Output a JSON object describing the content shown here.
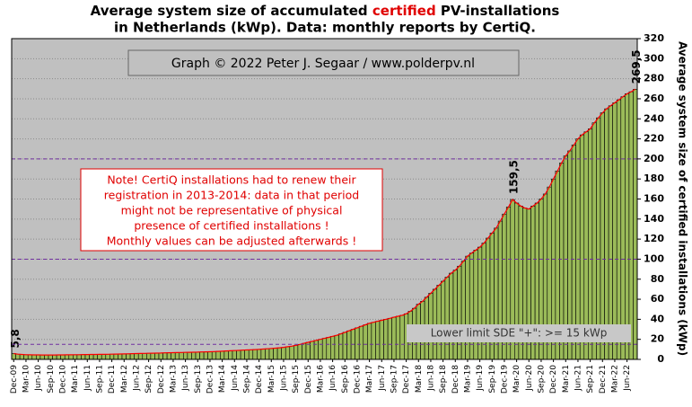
{
  "chart_data": {
    "type": "bar",
    "title": {
      "line1": [
        "Average system size of accumulated ",
        "certified",
        " PV-installations"
      ],
      "line2": "in Netherlands (kWp). Data: monthly reports by CertiQ."
    },
    "copyright": "Graph © 2022 Peter J. Segaar / www.polderpv.nl",
    "note": [
      "Note! CertiQ installations had to renew their",
      "registration in 2013-2014:  data in that period",
      "might  not be representative of physical",
      "presence of certified installations  !",
      "Monthly values can be adjusted afterwards !"
    ],
    "lower_limit_text": "Lower limit  SDE \"+\":    >=  15 kWp",
    "y_axis_label": "Average system size of certified installations  (kWp)",
    "ylim": [
      0,
      320
    ],
    "yticks": [
      0,
      20,
      40,
      60,
      80,
      100,
      120,
      140,
      160,
      180,
      200,
      220,
      240,
      260,
      280,
      300,
      320
    ],
    "grid": true,
    "ref_lines": [
      15,
      100,
      200
    ],
    "color": "#9bbb59",
    "line_color": "#ff0000",
    "categories": [
      "Dec-09",
      null,
      null,
      "Mar-10",
      null,
      null,
      "Jun-10",
      null,
      null,
      "Sep-10",
      null,
      null,
      "Dec-10",
      null,
      null,
      "Mar-11",
      null,
      null,
      "Jun-11",
      null,
      null,
      "Sep-11",
      null,
      null,
      "Dec-11",
      null,
      null,
      "Mar-12",
      null,
      null,
      "Jun-12",
      null,
      null,
      "Sep-12",
      null,
      null,
      "Dec-12",
      null,
      null,
      "Mar-13",
      null,
      null,
      "Jun-13",
      null,
      null,
      "Sep-13",
      null,
      null,
      "Dec-13",
      null,
      null,
      "Mar-14",
      null,
      null,
      "Jun-14",
      null,
      null,
      "Sep-14",
      null,
      null,
      "Dec-14",
      null,
      null,
      "Mar-15",
      null,
      null,
      "Jun-15",
      null,
      null,
      "Sep-15",
      null,
      null,
      "Dec-15",
      null,
      null,
      "Mar-16",
      null,
      null,
      "Jun-16",
      null,
      null,
      "Sep-16",
      null,
      null,
      "Dec-16",
      null,
      null,
      "Mar-17",
      null,
      null,
      "Jun-17",
      null,
      null,
      "Sep-17",
      null,
      null,
      "Dec-17",
      null,
      null,
      "Mar-18",
      null,
      null,
      "Jun-18",
      null,
      null,
      "Sep-18",
      null,
      null,
      "Dec-18",
      null,
      null,
      "Mar-19",
      null,
      null,
      "Jun-19",
      null,
      null,
      "Sep-19",
      null,
      null,
      "Dec-19",
      null,
      null,
      "Mar-20",
      null,
      null,
      "Jun-20",
      null,
      null,
      "Sep-20",
      null,
      null,
      "Dec-20",
      null,
      null,
      "Mar-21",
      null,
      null,
      "Jun-21",
      null,
      null,
      "Sep-21",
      null,
      null,
      "Dec-21",
      null,
      null,
      "Mar-22",
      null,
      null,
      "Jun-22",
      null,
      null
    ],
    "values": [
      5.8,
      5.2,
      4.9,
      4.7,
      4.6,
      4.5,
      4.5,
      4.4,
      4.4,
      4.4,
      4.4,
      4.5,
      4.5,
      4.6,
      4.6,
      4.7,
      4.7,
      4.8,
      4.8,
      4.9,
      4.9,
      5.0,
      5.0,
      5.1,
      5.2,
      5.3,
      5.4,
      5.5,
      5.6,
      5.7,
      5.8,
      5.9,
      6.0,
      6.1,
      6.2,
      6.3,
      6.4,
      6.5,
      6.6,
      6.7,
      6.8,
      6.9,
      7.0,
      7.1,
      7.2,
      7.3,
      7.4,
      7.5,
      7.6,
      7.8,
      8.0,
      8.2,
      8.4,
      8.6,
      8.8,
      9.0,
      9.2,
      9.4,
      9.6,
      9.8,
      10.0,
      10.3,
      10.6,
      10.9,
      11.2,
      11.6,
      12.0,
      12.6,
      13.2,
      14.0,
      15.0,
      16.0,
      17.0,
      18.0,
      19.0,
      20.0,
      21.0,
      22.0,
      23.0,
      24.0,
      25.5,
      27.0,
      28.5,
      30.0,
      31.5,
      33.0,
      34.5,
      36.0,
      37.0,
      38.0,
      39.0,
      40.0,
      41.0,
      42.0,
      43.0,
      44.0,
      45.5,
      48,
      51,
      55,
      58,
      62,
      66,
      70,
      74,
      78,
      82,
      86,
      89,
      93,
      98,
      103,
      106,
      109,
      112,
      116,
      121,
      126,
      131,
      138,
      145,
      152,
      159.5,
      156,
      153,
      151,
      150,
      153,
      156,
      160,
      165,
      172,
      180,
      188,
      196,
      203,
      208,
      214,
      220,
      224,
      227,
      230,
      236,
      241,
      246,
      250,
      253,
      256,
      259,
      262,
      265,
      267,
      269.5
    ],
    "value_labels": [
      "5,8",
      null,
      null,
      null,
      null,
      null,
      null,
      null,
      null,
      null,
      null,
      null,
      null,
      null,
      null,
      null,
      null,
      null,
      null,
      null,
      null,
      null,
      null,
      null,
      null,
      null,
      null,
      null,
      null,
      null,
      null,
      null,
      null,
      null,
      null,
      null,
      null,
      null,
      null,
      null,
      null,
      null,
      null,
      null,
      null,
      null,
      null,
      null,
      null,
      null,
      null,
      null,
      null,
      null,
      null,
      null,
      null,
      null,
      null,
      null,
      null,
      null,
      null,
      null,
      null,
      null,
      null,
      null,
      null,
      null,
      null,
      null,
      null,
      null,
      null,
      null,
      null,
      null,
      null,
      null,
      null,
      null,
      null,
      null,
      null,
      null,
      null,
      null,
      null,
      null,
      null,
      null,
      null,
      null,
      null,
      null,
      null,
      null,
      null,
      null,
      null,
      null,
      null,
      null,
      null,
      null,
      null,
      null,
      null,
      null,
      null,
      null,
      null,
      null,
      null,
      null,
      null,
      null,
      null,
      null,
      null,
      null,
      "159,5",
      null,
      null,
      null,
      null,
      null,
      null,
      null,
      null,
      null,
      null,
      null,
      null,
      null,
      null,
      null,
      null,
      null,
      null,
      null,
      null,
      null,
      null,
      null,
      null,
      null,
      null,
      null,
      null,
      null,
      "269,5"
    ]
  }
}
